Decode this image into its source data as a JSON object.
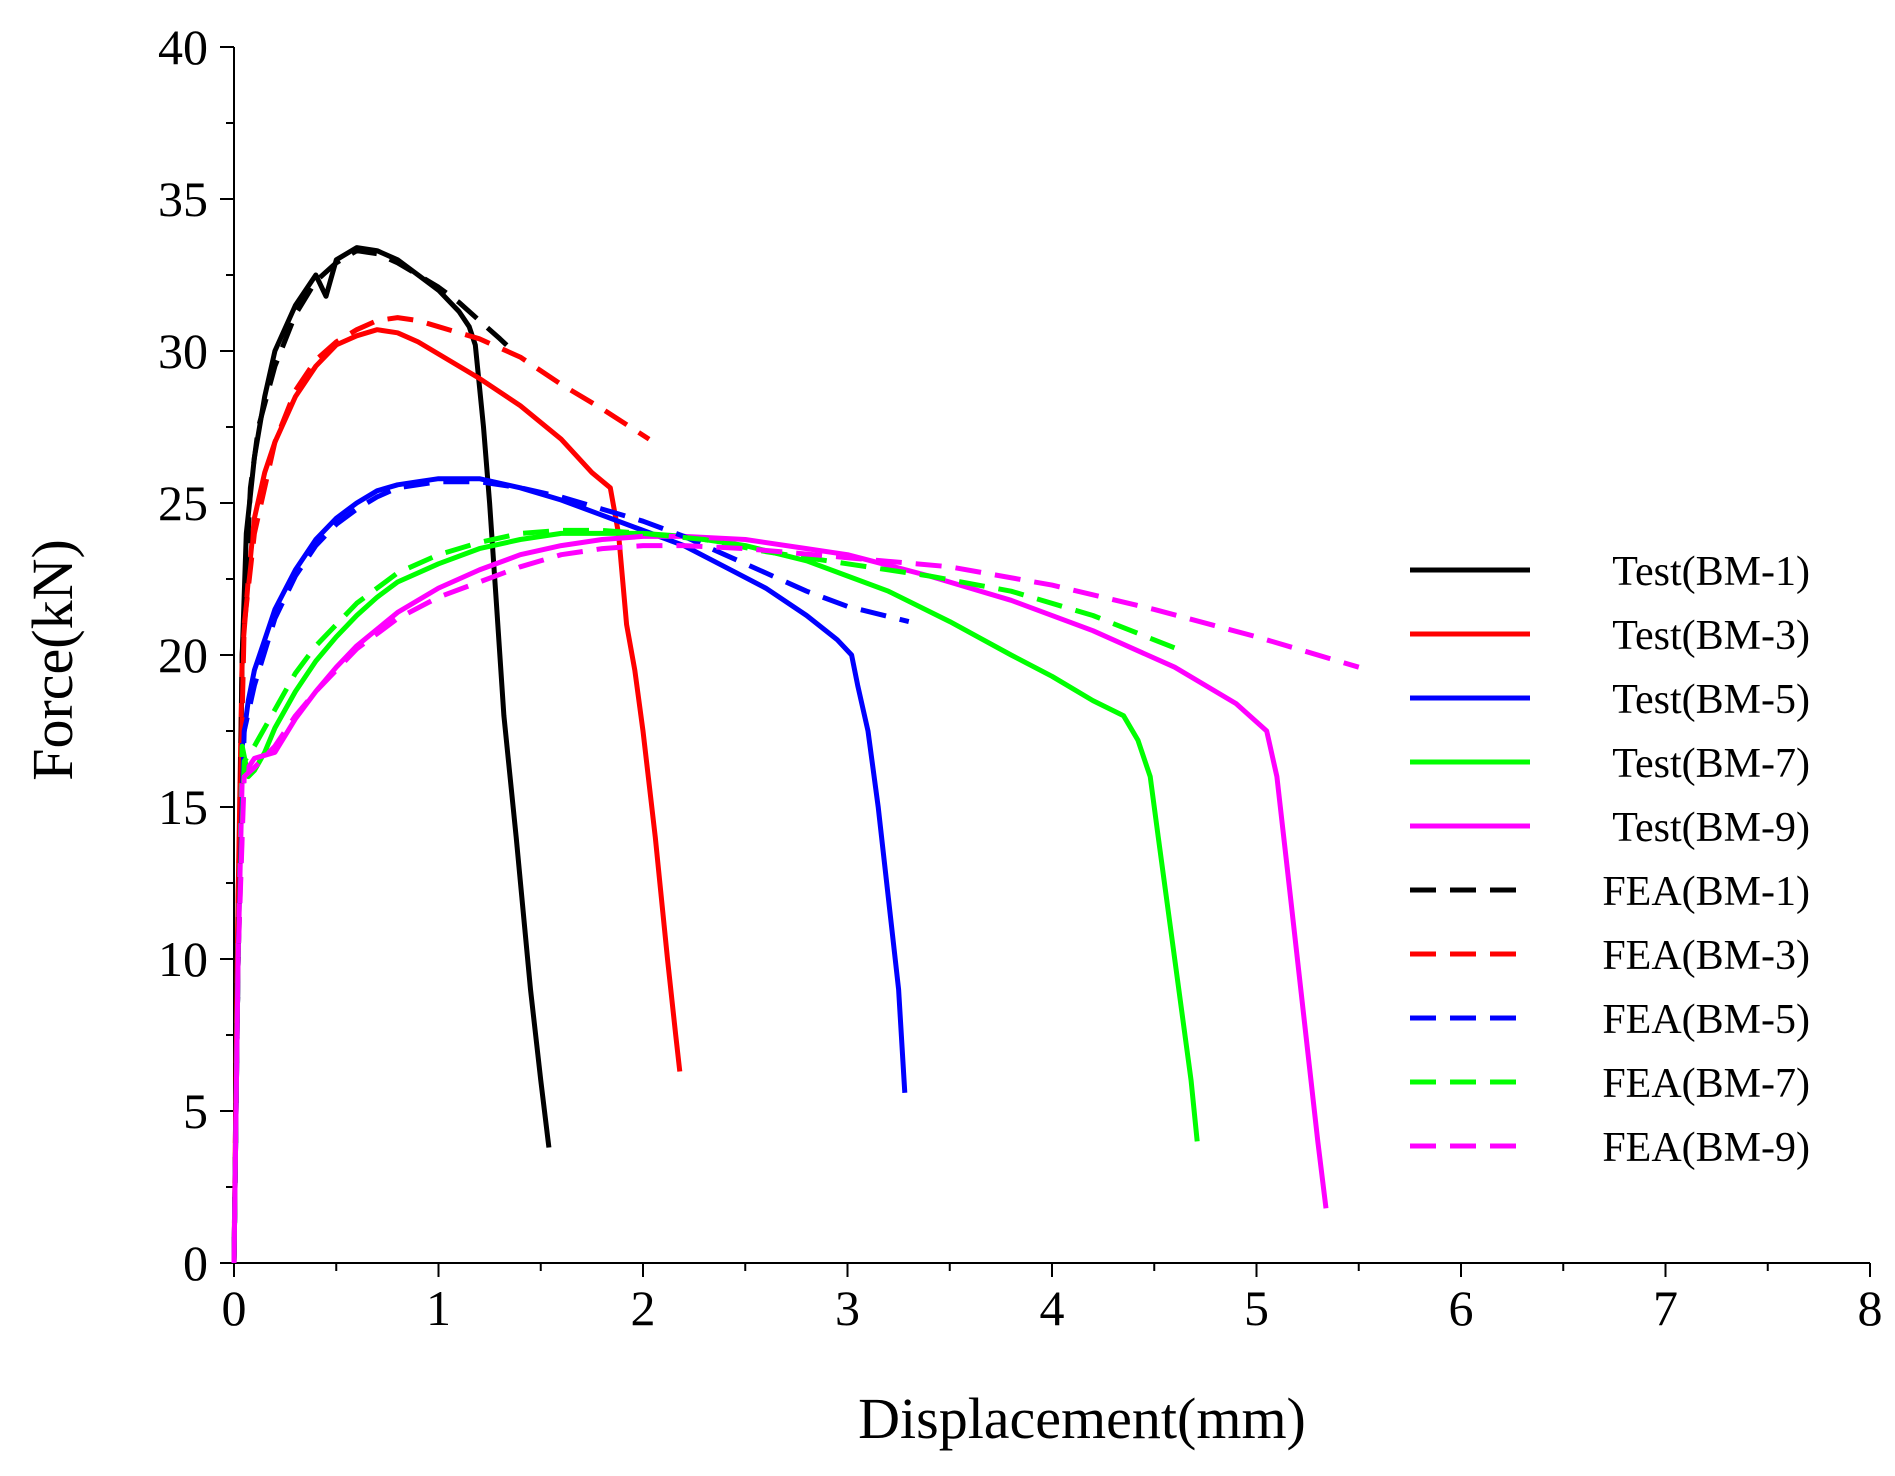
{
  "chart_data": {
    "type": "line",
    "title": "",
    "xlabel": "Displacement(mm)",
    "ylabel": "Force(kN)",
    "xlim": [
      0,
      8
    ],
    "ylim": [
      0,
      40
    ],
    "xticks": [
      0,
      1,
      2,
      3,
      4,
      5,
      6,
      7,
      8
    ],
    "yticks": [
      0,
      5,
      10,
      15,
      20,
      25,
      30,
      35,
      40
    ],
    "x_minor_step": 0.5,
    "y_minor_step": 2.5,
    "grid": false,
    "legend_position": "right",
    "series": [
      {
        "name": "Test(BM-1)",
        "color": "#000000",
        "style": "solid",
        "points": [
          [
            0,
            0
          ],
          [
            0.02,
            10
          ],
          [
            0.04,
            20
          ],
          [
            0.06,
            24
          ],
          [
            0.1,
            26.5
          ],
          [
            0.15,
            28.5
          ],
          [
            0.2,
            30
          ],
          [
            0.3,
            31.5
          ],
          [
            0.4,
            32.5
          ],
          [
            0.45,
            31.8
          ],
          [
            0.5,
            33
          ],
          [
            0.6,
            33.4
          ],
          [
            0.7,
            33.3
          ],
          [
            0.8,
            33.0
          ],
          [
            0.9,
            32.5
          ],
          [
            1.0,
            32.0
          ],
          [
            1.1,
            31.3
          ],
          [
            1.15,
            30.8
          ],
          [
            1.18,
            30.2
          ],
          [
            1.22,
            27.5
          ],
          [
            1.25,
            25
          ],
          [
            1.28,
            22
          ],
          [
            1.32,
            18
          ],
          [
            1.38,
            14
          ],
          [
            1.45,
            9
          ],
          [
            1.5,
            6
          ],
          [
            1.54,
            3.8
          ]
        ]
      },
      {
        "name": "Test(BM-3)",
        "color": "#ff0000",
        "style": "solid",
        "points": [
          [
            0,
            0
          ],
          [
            0.02,
            12
          ],
          [
            0.04,
            20
          ],
          [
            0.07,
            22.5
          ],
          [
            0.1,
            24.5
          ],
          [
            0.15,
            26
          ],
          [
            0.2,
            27
          ],
          [
            0.3,
            28.5
          ],
          [
            0.4,
            29.5
          ],
          [
            0.5,
            30.2
          ],
          [
            0.6,
            30.5
          ],
          [
            0.7,
            30.7
          ],
          [
            0.8,
            30.6
          ],
          [
            0.9,
            30.3
          ],
          [
            1.0,
            29.9
          ],
          [
            1.2,
            29.1
          ],
          [
            1.4,
            28.2
          ],
          [
            1.6,
            27.1
          ],
          [
            1.75,
            26.0
          ],
          [
            1.84,
            25.5
          ],
          [
            1.88,
            24
          ],
          [
            1.92,
            21
          ],
          [
            1.96,
            19.5
          ],
          [
            2.0,
            17.5
          ],
          [
            2.06,
            14
          ],
          [
            2.12,
            10
          ],
          [
            2.16,
            7.5
          ],
          [
            2.18,
            6.3
          ]
        ]
      },
      {
        "name": "Test(BM-5)",
        "color": "#0000ff",
        "style": "solid",
        "points": [
          [
            0,
            0
          ],
          [
            0.02,
            10
          ],
          [
            0.04,
            17
          ],
          [
            0.07,
            18.5
          ],
          [
            0.1,
            19.5
          ],
          [
            0.15,
            20.5
          ],
          [
            0.2,
            21.5
          ],
          [
            0.3,
            22.8
          ],
          [
            0.4,
            23.8
          ],
          [
            0.5,
            24.5
          ],
          [
            0.6,
            25
          ],
          [
            0.7,
            25.4
          ],
          [
            0.8,
            25.6
          ],
          [
            0.9,
            25.7
          ],
          [
            1.0,
            25.8
          ],
          [
            1.2,
            25.8
          ],
          [
            1.4,
            25.5
          ],
          [
            1.6,
            25.1
          ],
          [
            1.8,
            24.6
          ],
          [
            2.0,
            24.1
          ],
          [
            2.2,
            23.6
          ],
          [
            2.4,
            22.9
          ],
          [
            2.6,
            22.2
          ],
          [
            2.8,
            21.3
          ],
          [
            2.95,
            20.5
          ],
          [
            3.02,
            20.0
          ],
          [
            3.05,
            19
          ],
          [
            3.1,
            17.5
          ],
          [
            3.15,
            15
          ],
          [
            3.2,
            12
          ],
          [
            3.25,
            9
          ],
          [
            3.28,
            5.6
          ]
        ]
      },
      {
        "name": "Test(BM-7)",
        "color": "#00ff00",
        "style": "solid",
        "points": [
          [
            0,
            0
          ],
          [
            0.02,
            10
          ],
          [
            0.04,
            17
          ],
          [
            0.07,
            16
          ],
          [
            0.1,
            16.2
          ],
          [
            0.15,
            16.8
          ],
          [
            0.2,
            17.6
          ],
          [
            0.3,
            18.8
          ],
          [
            0.4,
            19.8
          ],
          [
            0.5,
            20.6
          ],
          [
            0.6,
            21.3
          ],
          [
            0.7,
            21.9
          ],
          [
            0.8,
            22.4
          ],
          [
            1.0,
            23.0
          ],
          [
            1.2,
            23.5
          ],
          [
            1.4,
            23.8
          ],
          [
            1.6,
            24.0
          ],
          [
            1.8,
            24.0
          ],
          [
            2.0,
            24.0
          ],
          [
            2.2,
            23.9
          ],
          [
            2.5,
            23.6
          ],
          [
            2.8,
            23.1
          ],
          [
            3.0,
            22.6
          ],
          [
            3.2,
            22.1
          ],
          [
            3.5,
            21.1
          ],
          [
            3.8,
            20.0
          ],
          [
            4.0,
            19.3
          ],
          [
            4.2,
            18.5
          ],
          [
            4.35,
            18.0
          ],
          [
            4.42,
            17.2
          ],
          [
            4.48,
            16
          ],
          [
            4.52,
            14
          ],
          [
            4.58,
            11
          ],
          [
            4.64,
            8
          ],
          [
            4.68,
            6
          ],
          [
            4.71,
            4.0
          ]
        ]
      },
      {
        "name": "Test(BM-9)",
        "color": "#ff00ff",
        "style": "solid",
        "points": [
          [
            0,
            0
          ],
          [
            0.02,
            10
          ],
          [
            0.04,
            16
          ],
          [
            0.07,
            16.3
          ],
          [
            0.1,
            16.6
          ],
          [
            0.15,
            16.7
          ],
          [
            0.2,
            16.8
          ],
          [
            0.3,
            17.9
          ],
          [
            0.4,
            18.8
          ],
          [
            0.5,
            19.6
          ],
          [
            0.6,
            20.3
          ],
          [
            0.8,
            21.4
          ],
          [
            1.0,
            22.2
          ],
          [
            1.2,
            22.8
          ],
          [
            1.4,
            23.3
          ],
          [
            1.6,
            23.6
          ],
          [
            1.8,
            23.8
          ],
          [
            2.0,
            23.9
          ],
          [
            2.2,
            23.9
          ],
          [
            2.5,
            23.8
          ],
          [
            2.8,
            23.5
          ],
          [
            3.0,
            23.3
          ],
          [
            3.4,
            22.6
          ],
          [
            3.8,
            21.8
          ],
          [
            4.2,
            20.8
          ],
          [
            4.6,
            19.6
          ],
          [
            4.9,
            18.4
          ],
          [
            5.05,
            17.5
          ],
          [
            5.1,
            16
          ],
          [
            5.15,
            13
          ],
          [
            5.2,
            10
          ],
          [
            5.25,
            7
          ],
          [
            5.3,
            4
          ],
          [
            5.34,
            1.8
          ]
        ]
      },
      {
        "name": "FEA(BM-1)",
        "color": "#000000",
        "style": "dashed",
        "points": [
          [
            0,
            0
          ],
          [
            0.02,
            10
          ],
          [
            0.04,
            20
          ],
          [
            0.08,
            25.5
          ],
          [
            0.12,
            27.5
          ],
          [
            0.2,
            29.5
          ],
          [
            0.3,
            31.2
          ],
          [
            0.4,
            32.3
          ],
          [
            0.5,
            32.9
          ],
          [
            0.6,
            33.3
          ],
          [
            0.7,
            33.2
          ],
          [
            0.8,
            32.9
          ],
          [
            0.9,
            32.5
          ],
          [
            1.0,
            32.1
          ],
          [
            1.1,
            31.6
          ],
          [
            1.2,
            31.0
          ],
          [
            1.3,
            30.4
          ],
          [
            1.38,
            29.9
          ]
        ]
      },
      {
        "name": "FEA(BM-3)",
        "color": "#ff0000",
        "style": "dashed",
        "points": [
          [
            0,
            0
          ],
          [
            0.02,
            12
          ],
          [
            0.05,
            21
          ],
          [
            0.1,
            24
          ],
          [
            0.2,
            27
          ],
          [
            0.3,
            28.7
          ],
          [
            0.4,
            29.7
          ],
          [
            0.5,
            30.3
          ],
          [
            0.6,
            30.7
          ],
          [
            0.7,
            31.0
          ],
          [
            0.8,
            31.1
          ],
          [
            0.9,
            31.0
          ],
          [
            1.0,
            30.8
          ],
          [
            1.2,
            30.4
          ],
          [
            1.4,
            29.8
          ],
          [
            1.6,
            28.9
          ],
          [
            1.8,
            28.1
          ],
          [
            2.03,
            27.1
          ]
        ]
      },
      {
        "name": "FEA(BM-5)",
        "color": "#0000ff",
        "style": "dashed",
        "points": [
          [
            0,
            0
          ],
          [
            0.02,
            10
          ],
          [
            0.05,
            17.5
          ],
          [
            0.1,
            19
          ],
          [
            0.2,
            21.2
          ],
          [
            0.3,
            22.6
          ],
          [
            0.4,
            23.6
          ],
          [
            0.5,
            24.3
          ],
          [
            0.6,
            24.8
          ],
          [
            0.7,
            25.2
          ],
          [
            0.8,
            25.5
          ],
          [
            1.0,
            25.7
          ],
          [
            1.2,
            25.7
          ],
          [
            1.4,
            25.5
          ],
          [
            1.6,
            25.2
          ],
          [
            1.8,
            24.8
          ],
          [
            2.0,
            24.4
          ],
          [
            2.2,
            23.9
          ],
          [
            2.4,
            23.3
          ],
          [
            2.6,
            22.7
          ],
          [
            2.8,
            22.1
          ],
          [
            3.0,
            21.6
          ],
          [
            3.3,
            21.1
          ]
        ]
      },
      {
        "name": "FEA(BM-7)",
        "color": "#00ff00",
        "style": "dashed",
        "points": [
          [
            0,
            0
          ],
          [
            0.02,
            10
          ],
          [
            0.05,
            16.5
          ],
          [
            0.1,
            17
          ],
          [
            0.2,
            18.2
          ],
          [
            0.3,
            19.4
          ],
          [
            0.4,
            20.3
          ],
          [
            0.6,
            21.7
          ],
          [
            0.8,
            22.7
          ],
          [
            1.0,
            23.3
          ],
          [
            1.2,
            23.7
          ],
          [
            1.4,
            24.0
          ],
          [
            1.6,
            24.1
          ],
          [
            1.8,
            24.1
          ],
          [
            2.0,
            24.0
          ],
          [
            2.3,
            23.8
          ],
          [
            2.6,
            23.4
          ],
          [
            3.0,
            23.0
          ],
          [
            3.4,
            22.6
          ],
          [
            3.8,
            22.1
          ],
          [
            4.2,
            21.3
          ],
          [
            4.65,
            20.1
          ]
        ]
      },
      {
        "name": "FEA(BM-9)",
        "color": "#ff00ff",
        "style": "dashed",
        "points": [
          [
            0,
            0
          ],
          [
            0.02,
            10
          ],
          [
            0.05,
            16
          ],
          [
            0.1,
            16.3
          ],
          [
            0.2,
            17
          ],
          [
            0.3,
            18
          ],
          [
            0.4,
            18.8
          ],
          [
            0.6,
            20.2
          ],
          [
            0.8,
            21.2
          ],
          [
            1.0,
            21.9
          ],
          [
            1.2,
            22.4
          ],
          [
            1.4,
            22.9
          ],
          [
            1.6,
            23.3
          ],
          [
            1.8,
            23.5
          ],
          [
            2.0,
            23.6
          ],
          [
            2.2,
            23.6
          ],
          [
            2.5,
            23.5
          ],
          [
            3.0,
            23.2
          ],
          [
            3.5,
            22.9
          ],
          [
            4.0,
            22.3
          ],
          [
            4.5,
            21.5
          ],
          [
            5.0,
            20.6
          ],
          [
            5.5,
            19.6
          ]
        ]
      }
    ]
  }
}
